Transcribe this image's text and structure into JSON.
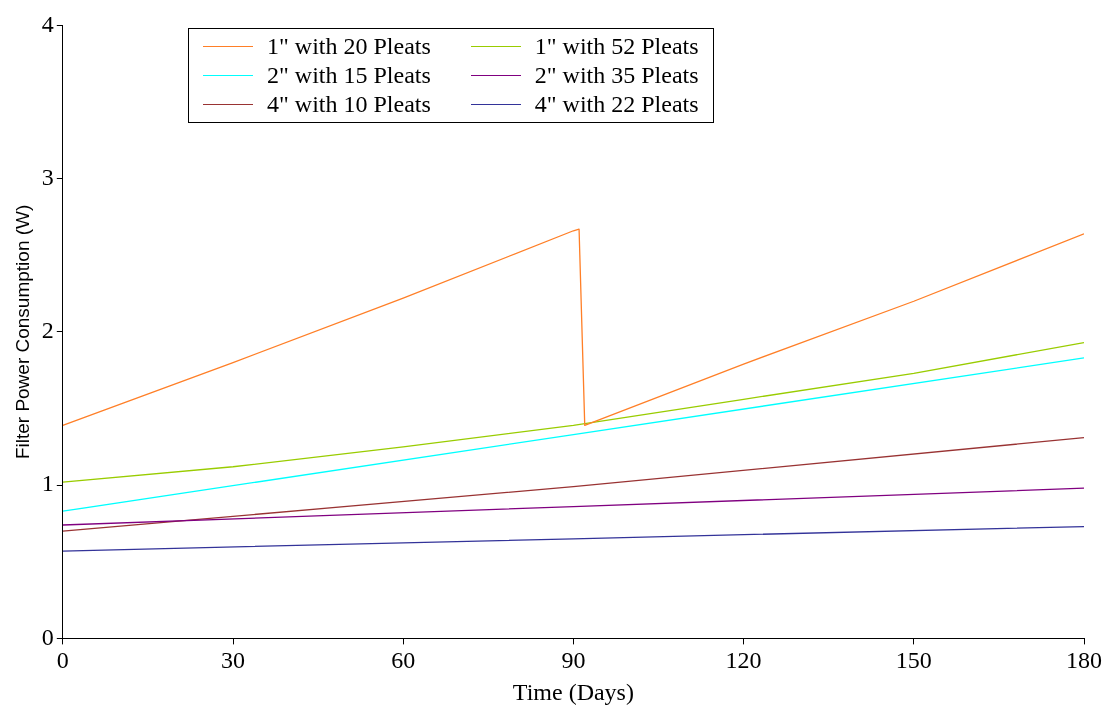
{
  "chart_data": {
    "type": "line",
    "xlabel": "Time (Days)",
    "ylabel": "Filter Power Consumption (W)",
    "xlim": [
      0,
      180
    ],
    "xticks": [
      0,
      30,
      60,
      90,
      120,
      150,
      180
    ],
    "ylim": [
      0,
      4
    ],
    "yticks": [
      0,
      1,
      2,
      3,
      4
    ],
    "grid": false,
    "legend": "top left",
    "marker": "none",
    "line_style": "solid",
    "series": [
      {
        "name": "1\" with 20 Pleats",
        "color": "#ff7f27",
        "x": [
          0,
          30,
          60,
          90,
          91,
          92,
          120,
          150,
          180
        ],
        "values": [
          1.39,
          1.8,
          2.22,
          2.66,
          2.67,
          1.39,
          1.79,
          2.2,
          2.64
        ]
      },
      {
        "name": "1\" with 52 Pleats",
        "color": "#99cc00",
        "x": [
          0,
          30,
          60,
          90,
          120,
          150,
          180
        ],
        "values": [
          1.02,
          1.12,
          1.25,
          1.39,
          1.56,
          1.73,
          1.93
        ]
      },
      {
        "name": "2\" with 15 Pleats",
        "color": "#00ffff",
        "x": [
          0,
          90,
          180
        ],
        "values": [
          0.83,
          1.33,
          1.83
        ]
      },
      {
        "name": "2\" with 35 Pleats",
        "color": "#800080",
        "x": [
          0,
          90,
          180
        ],
        "values": [
          0.74,
          0.86,
          0.98
        ]
      },
      {
        "name": "4\" with 10 Pleats",
        "color": "#993333",
        "x": [
          0,
          90,
          180
        ],
        "values": [
          0.7,
          0.99,
          1.31
        ]
      },
      {
        "name": "4\" with 22 Pleats",
        "color": "#333399",
        "x": [
          0,
          90,
          180
        ],
        "values": [
          0.57,
          0.65,
          0.73
        ]
      }
    ]
  }
}
